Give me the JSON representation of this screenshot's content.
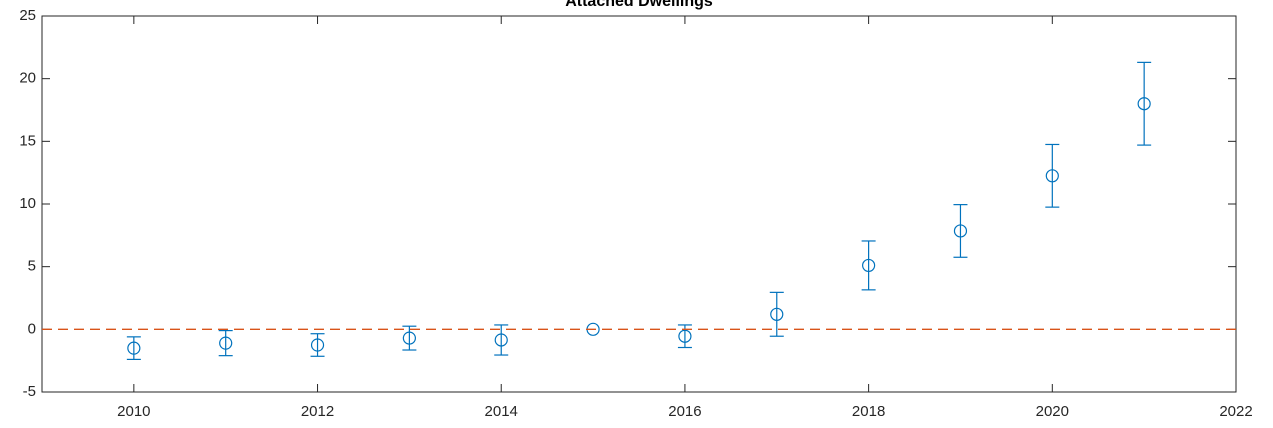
{
  "chart_data": {
    "type": "errorbar",
    "title": "Attached Dwellings",
    "x": [
      2010,
      2011,
      2012,
      2013,
      2014,
      2015,
      2016,
      2017,
      2018,
      2019,
      2020,
      2021
    ],
    "series": [
      {
        "color": "#0072BD",
        "values": [
          -1.5,
          -1.1,
          -1.25,
          -0.7,
          -0.85,
          0,
          -0.55,
          1.2,
          5.1,
          7.85,
          12.25,
          18.0
        ],
        "errors": [
          0.9,
          1.0,
          0.9,
          0.95,
          1.2,
          0,
          0.9,
          1.75,
          1.95,
          2.1,
          2.5,
          3.3
        ]
      }
    ],
    "reference_line": {
      "value": 0,
      "color": "#D95319"
    },
    "xlim": [
      2009,
      2022
    ],
    "xticks": [
      2010,
      2012,
      2014,
      2016,
      2018,
      2020,
      2022
    ],
    "ylim": [
      -5,
      25
    ],
    "yticks": [
      -5,
      0,
      5,
      10,
      15,
      20,
      25
    ]
  }
}
